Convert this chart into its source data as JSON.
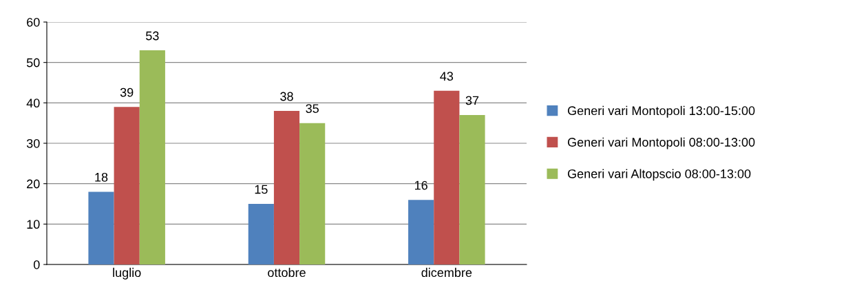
{
  "chart_data": {
    "type": "bar",
    "categories": [
      "luglio",
      "ottobre",
      "dicembre"
    ],
    "series": [
      {
        "name": "Generi vari Montopoli 13:00-15:00",
        "color": "#4f81bd",
        "values": [
          18,
          15,
          16
        ]
      },
      {
        "name": "Generi vari Montopoli 08:00-13:00",
        "color": "#c0504d",
        "values": [
          39,
          38,
          43
        ]
      },
      {
        "name": "Generi vari Altopscio 08:00-13:00",
        "color": "#9bbb59",
        "values": [
          53,
          35,
          37
        ]
      }
    ],
    "ylim": [
      0,
      60
    ],
    "yticks": [
      0,
      10,
      20,
      30,
      40,
      50,
      60
    ],
    "grid": "y",
    "legend": "right",
    "data_labels": true
  }
}
